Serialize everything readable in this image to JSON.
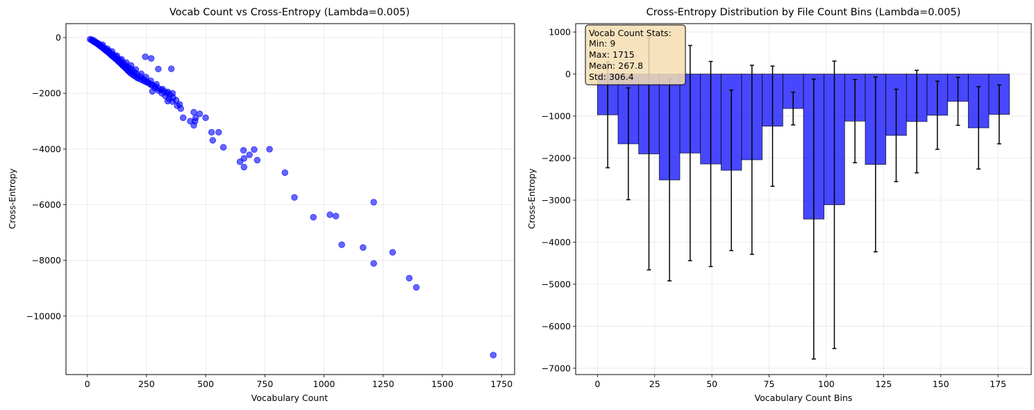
{
  "chart_data": [
    {
      "type": "scatter",
      "title": "Vocab Count vs Cross-Entropy (Lambda=0.005)",
      "xlabel": "Vocabulary Count",
      "ylabel": "Cross-Entropy",
      "xlim": [
        -90,
        1805
      ],
      "ylim": [
        -12100,
        500
      ],
      "xticks": [
        0,
        250,
        500,
        750,
        1000,
        1250,
        1500,
        1750
      ],
      "yticks": [
        0,
        -2000,
        -4000,
        -6000,
        -8000,
        -10000
      ],
      "grid": true,
      "color": "#0000ff",
      "points": [
        [
          12,
          -60
        ],
        [
          18,
          -90
        ],
        [
          22,
          -110
        ],
        [
          28,
          -150
        ],
        [
          32,
          -170
        ],
        [
          38,
          -200
        ],
        [
          42,
          -220
        ],
        [
          48,
          -260
        ],
        [
          52,
          -290
        ],
        [
          58,
          -320
        ],
        [
          62,
          -350
        ],
        [
          68,
          -390
        ],
        [
          72,
          -420
        ],
        [
          78,
          -460
        ],
        [
          82,
          -490
        ],
        [
          88,
          -520
        ],
        [
          92,
          -560
        ],
        [
          98,
          -600
        ],
        [
          102,
          -640
        ],
        [
          108,
          -680
        ],
        [
          112,
          -700
        ],
        [
          118,
          -750
        ],
        [
          122,
          -780
        ],
        [
          128,
          -820
        ],
        [
          132,
          -860
        ],
        [
          138,
          -900
        ],
        [
          142,
          -940
        ],
        [
          148,
          -990
        ],
        [
          152,
          -1020
        ],
        [
          158,
          -1060
        ],
        [
          162,
          -1100
        ],
        [
          168,
          -1150
        ],
        [
          172,
          -1190
        ],
        [
          178,
          -1230
        ],
        [
          182,
          -1270
        ],
        [
          190,
          -1320
        ],
        [
          198,
          -1370
        ],
        [
          205,
          -1400
        ],
        [
          212,
          -1450
        ],
        [
          220,
          -1480
        ],
        [
          230,
          -1520
        ],
        [
          240,
          -1560
        ],
        [
          250,
          -1600
        ],
        [
          262,
          -1650
        ],
        [
          275,
          -1700
        ],
        [
          288,
          -1760
        ],
        [
          300,
          -1820
        ],
        [
          312,
          -1880
        ],
        [
          325,
          -1940
        ],
        [
          338,
          -2000
        ],
        [
          350,
          -2060
        ],
        [
          362,
          -2150
        ],
        [
          375,
          -2250
        ],
        [
          390,
          -2400
        ],
        [
          20,
          -80
        ],
        [
          30,
          -120
        ],
        [
          40,
          -180
        ],
        [
          50,
          -230
        ],
        [
          60,
          -300
        ],
        [
          70,
          -360
        ],
        [
          80,
          -430
        ],
        [
          90,
          -480
        ],
        [
          100,
          -560
        ],
        [
          110,
          -620
        ],
        [
          120,
          -680
        ],
        [
          130,
          -760
        ],
        [
          140,
          -820
        ],
        [
          150,
          -900
        ],
        [
          160,
          -980
        ],
        [
          170,
          -1050
        ],
        [
          180,
          -1100
        ],
        [
          190,
          -1180
        ],
        [
          200,
          -1250
        ],
        [
          210,
          -1320
        ],
        [
          225,
          -1400
        ],
        [
          240,
          -1500
        ],
        [
          255,
          -1600
        ],
        [
          270,
          -1700
        ],
        [
          285,
          -1800
        ],
        [
          300,
          -1900
        ],
        [
          315,
          -2000
        ],
        [
          330,
          -2100
        ],
        [
          345,
          -2200
        ],
        [
          360,
          -2300
        ],
        [
          380,
          -2450
        ],
        [
          395,
          -2550
        ],
        [
          65,
          -260
        ],
        [
          85,
          -400
        ],
        [
          105,
          -500
        ],
        [
          125,
          -650
        ],
        [
          145,
          -780
        ],
        [
          165,
          -900
        ],
        [
          185,
          -1000
        ],
        [
          205,
          -1150
        ],
        [
          228,
          -1300
        ],
        [
          248,
          -1420
        ],
        [
          268,
          -1550
        ],
        [
          292,
          -1680
        ],
        [
          318,
          -1850
        ],
        [
          340,
          -1950
        ],
        [
          360,
          -2000
        ],
        [
          245,
          -690
        ],
        [
          270,
          -750
        ],
        [
          300,
          -1130
        ],
        [
          355,
          -1120
        ],
        [
          275,
          -1930
        ],
        [
          340,
          -2280
        ],
        [
          405,
          -2880
        ],
        [
          435,
          -3000
        ],
        [
          450,
          -2680
        ],
        [
          455,
          -3000
        ],
        [
          450,
          -3150
        ],
        [
          458,
          -2880
        ],
        [
          475,
          -2740
        ],
        [
          500,
          -2880
        ],
        [
          525,
          -3400
        ],
        [
          530,
          -3690
        ],
        [
          555,
          -3400
        ],
        [
          575,
          -3940
        ],
        [
          645,
          -4460
        ],
        [
          660,
          -4050
        ],
        [
          662,
          -4340
        ],
        [
          662,
          -4650
        ],
        [
          685,
          -4210
        ],
        [
          705,
          -4020
        ],
        [
          718,
          -4400
        ],
        [
          770,
          -4010
        ],
        [
          835,
          -4850
        ],
        [
          875,
          -5740
        ],
        [
          955,
          -6450
        ],
        [
          1025,
          -6360
        ],
        [
          1050,
          -6410
        ],
        [
          1075,
          -7440
        ],
        [
          1165,
          -7540
        ],
        [
          1210,
          -5910
        ],
        [
          1210,
          -8110
        ],
        [
          1290,
          -7710
        ],
        [
          1360,
          -8640
        ],
        [
          1390,
          -8970
        ],
        [
          1715,
          -11400
        ]
      ]
    },
    {
      "type": "bar",
      "title": "Cross-Entropy Distribution by File Count Bins (Lambda=0.005)",
      "xlabel": "Vocabulary Count Bins",
      "ylabel": "Cross-Entropy",
      "xlim": [
        -9.5,
        189.5
      ],
      "ylim": [
        -7150,
        1200
      ],
      "xticks": [
        0,
        25,
        50,
        75,
        100,
        125,
        150,
        175
      ],
      "yticks": [
        1000,
        0,
        -1000,
        -2000,
        -3000,
        -4000,
        -5000,
        -6000,
        -7000
      ],
      "grid": true,
      "bar_color": "#0000ff",
      "bin_width": 9,
      "bins": [
        {
          "x": 4.5,
          "value": -970,
          "err": 1260
        },
        {
          "x": 13.5,
          "value": -1660,
          "err": 1330
        },
        {
          "x": 22.5,
          "value": -1900,
          "err": 2760
        },
        {
          "x": 31.5,
          "value": -2520,
          "err": 2400
        },
        {
          "x": 40.5,
          "value": -1880,
          "err": 2560
        },
        {
          "x": 49.5,
          "value": -2140,
          "err": 2440
        },
        {
          "x": 58.5,
          "value": -2290,
          "err": 1910
        },
        {
          "x": 67.5,
          "value": -2040,
          "err": 2250
        },
        {
          "x": 76.5,
          "value": -1240,
          "err": 1430
        },
        {
          "x": 85.5,
          "value": -820,
          "err": 390
        },
        {
          "x": 94.5,
          "value": -3450,
          "err": 3330
        },
        {
          "x": 103.5,
          "value": -3110,
          "err": 3420
        },
        {
          "x": 112.5,
          "value": -1120,
          "err": 990
        },
        {
          "x": 121.5,
          "value": -2150,
          "err": 2080
        },
        {
          "x": 130.5,
          "value": -1460,
          "err": 1100
        },
        {
          "x": 139.5,
          "value": -1130,
          "err": 1220
        },
        {
          "x": 148.5,
          "value": -980,
          "err": 810
        },
        {
          "x": 157.5,
          "value": -650,
          "err": 570
        },
        {
          "x": 166.5,
          "value": -1280,
          "err": 980
        },
        {
          "x": 175.5,
          "value": -960,
          "err": 700
        }
      ],
      "annotation": [
        "Vocab Count Stats:",
        "Min: 9",
        "Max: 1715",
        "Mean: 267.8",
        "Std: 306.4"
      ]
    }
  ]
}
